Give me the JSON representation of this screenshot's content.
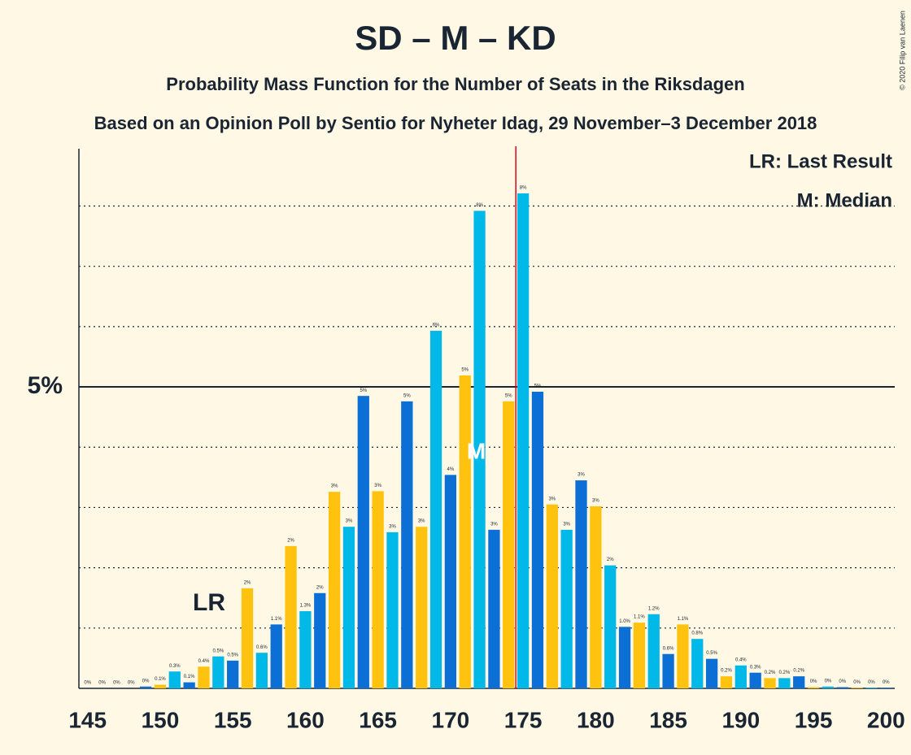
{
  "chart_data": {
    "type": "bar",
    "title": "SD – M – KD",
    "subtitle": "Probability Mass Function for the Number of Seats in the Riksdagen",
    "source_line": "Based on an Opinion Poll by Sentio for Nyheter Idag, 29 November–3 December 2018",
    "credit": "© 2020 Filip van Laenen",
    "legend": [
      "LR: Last Result",
      "M: Median"
    ],
    "x": [
      145,
      146,
      147,
      148,
      149,
      150,
      151,
      152,
      153,
      154,
      155,
      156,
      157,
      158,
      159,
      160,
      161,
      162,
      163,
      164,
      165,
      166,
      167,
      168,
      169,
      170,
      171,
      172,
      173,
      174,
      175,
      176,
      177,
      178,
      179,
      180,
      181,
      182,
      183,
      184,
      185,
      186,
      187,
      188,
      189,
      190,
      191,
      192,
      193,
      194,
      195,
      196,
      197,
      198,
      199,
      200
    ],
    "values": [
      0,
      0,
      0,
      0,
      0.03,
      0.06,
      0.28,
      0.1,
      0.36,
      0.53,
      0.46,
      1.66,
      0.59,
      1.06,
      2.36,
      1.28,
      1.58,
      3.26,
      2.68,
      4.85,
      3.27,
      2.59,
      4.76,
      2.68,
      5.93,
      3.54,
      5.19,
      7.92,
      2.63,
      4.76,
      8.21,
      4.92,
      3.05,
      2.63,
      3.45,
      3.02,
      2.04,
      1.02,
      1.09,
      1.23,
      0.57,
      1.06,
      0.82,
      0.49,
      0.2,
      0.38,
      0.26,
      0.17,
      0.17,
      0.2,
      0.02,
      0.03,
      0.02,
      0.01,
      0.01,
      0.01
    ],
    "value_labels": [
      "0%",
      "0%",
      "0%",
      "0%",
      "0%",
      "0.1%",
      "0.3%",
      "0.1%",
      "0.4%",
      "0.5%",
      "0.5%",
      "2%",
      "0.6%",
      "1.1%",
      "2%",
      "1.3%",
      "2%",
      "3%",
      "3%",
      "5%",
      "3%",
      "3%",
      "5%",
      "3%",
      "6%",
      "4%",
      "5%",
      "8%",
      "3%",
      "5%",
      "8%",
      "5%",
      "3%",
      "3%",
      "3%",
      "3%",
      "2%",
      "1.0%",
      "1.1%",
      "1.2%",
      "0.6%",
      "1.1%",
      "0.8%",
      "0.5%",
      "0.2%",
      "0.4%",
      "0.3%",
      "0.2%",
      "0.2%",
      "0.2%",
      "0%",
      "0%",
      "0%",
      "0%",
      "0%",
      "0%"
    ],
    "colors": [
      "#00b9e8",
      "#0b6fd5",
      "#ffc20e"
    ],
    "xlim": [
      144.4,
      200.6
    ],
    "xticks": [
      145,
      150,
      155,
      160,
      165,
      170,
      175,
      180,
      185,
      190,
      195,
      200
    ],
    "ylim": [
      0,
      8.95
    ],
    "yticks": [
      {
        "value": 5,
        "label": "5%"
      }
    ],
    "minor_yticks": [
      1,
      2,
      3,
      4,
      6,
      7,
      8
    ],
    "majority": 175,
    "last_result": {
      "seat": 155,
      "label": "LR"
    },
    "median": {
      "seat": 172,
      "label": "M"
    }
  }
}
